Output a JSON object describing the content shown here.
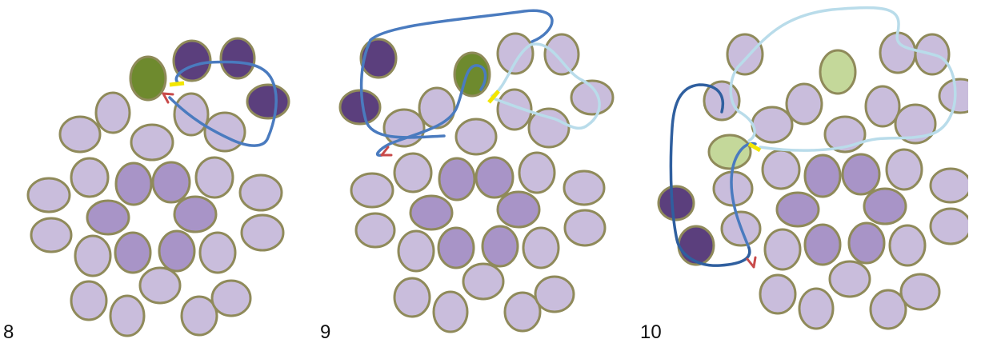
{
  "panels": [
    {
      "label": "8"
    },
    {
      "label": "9"
    },
    {
      "label": "10"
    }
  ],
  "colors": {
    "cell_light": "#c9bddc",
    "cell_mid": "#a894c7",
    "cell_dark": "#5b3f7d",
    "cell_green": "#6e8a2e",
    "cell_green_pale": "#c4d89a",
    "cell_outline": "#8f8a5a",
    "path_blue": "#4a7bbf",
    "path_dark_blue": "#2f5f9f",
    "path_light_blue": "#b9dcea",
    "arrow_red": "#c84a4a",
    "marker_yellow": "#f2e600"
  }
}
